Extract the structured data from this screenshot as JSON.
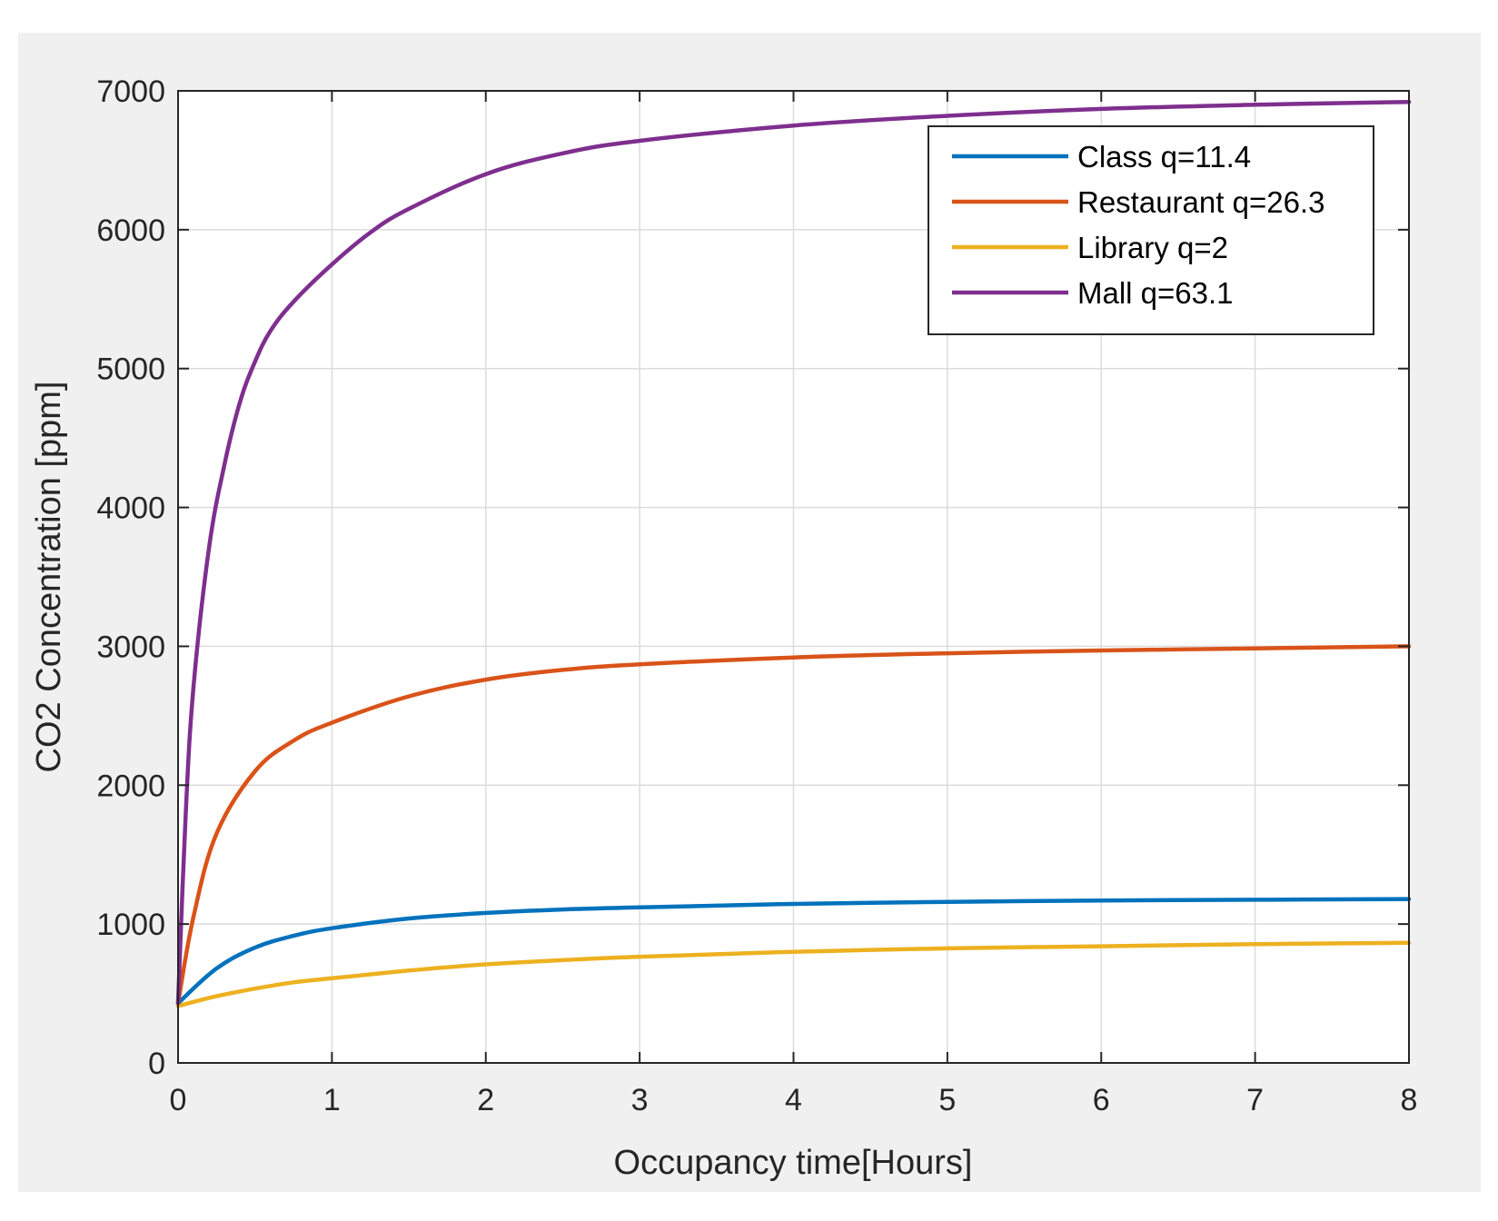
{
  "chart_data": {
    "type": "line",
    "title": "",
    "xlabel": "Occupancy time[Hours]",
    "ylabel": "CO2 Concentration [ppm]",
    "xlim": [
      0,
      8
    ],
    "ylim": [
      0,
      7000
    ],
    "xticks": [
      0,
      1,
      2,
      3,
      4,
      5,
      6,
      7,
      8
    ],
    "yticks": [
      0,
      1000,
      2000,
      3000,
      4000,
      5000,
      6000,
      7000
    ],
    "grid": true,
    "legend_position": "top-right",
    "series": [
      {
        "name": "Class q=11.4",
        "color": "#0072bd",
        "x": [
          0,
          0.25,
          0.5,
          0.75,
          1,
          1.5,
          2,
          2.5,
          3,
          4,
          5,
          6,
          7,
          8
        ],
        "y": [
          430,
          680,
          830,
          915,
          970,
          1040,
          1080,
          1105,
          1120,
          1145,
          1160,
          1170,
          1175,
          1180
        ]
      },
      {
        "name": "Restaurant q=26.3",
        "color": "#d95319",
        "x": [
          0,
          0.1,
          0.25,
          0.5,
          0.75,
          1,
          1.5,
          2,
          2.5,
          3,
          4,
          5,
          6,
          7,
          8
        ],
        "y": [
          430,
          1050,
          1650,
          2100,
          2320,
          2450,
          2640,
          2760,
          2830,
          2870,
          2920,
          2950,
          2970,
          2985,
          3000
        ]
      },
      {
        "name": "Library q=2",
        "color": "#edb120",
        "x": [
          0,
          0.25,
          0.5,
          0.75,
          1,
          1.5,
          2,
          2.5,
          3,
          4,
          5,
          6,
          7,
          8
        ],
        "y": [
          410,
          480,
          535,
          580,
          610,
          665,
          710,
          740,
          765,
          800,
          825,
          840,
          855,
          865
        ]
      },
      {
        "name": "Mall q=63.1",
        "color": "#7e2f8e",
        "x": [
          0,
          0.05,
          0.1,
          0.2,
          0.3,
          0.4,
          0.5,
          0.6,
          0.75,
          1,
          1.25,
          1.5,
          2,
          2.5,
          3,
          4,
          5,
          6,
          7,
          8
        ],
        "y": [
          430,
          1800,
          2700,
          3700,
          4300,
          4750,
          5050,
          5270,
          5480,
          5750,
          5980,
          6150,
          6400,
          6550,
          6640,
          6750,
          6820,
          6870,
          6900,
          6920
        ]
      }
    ]
  }
}
